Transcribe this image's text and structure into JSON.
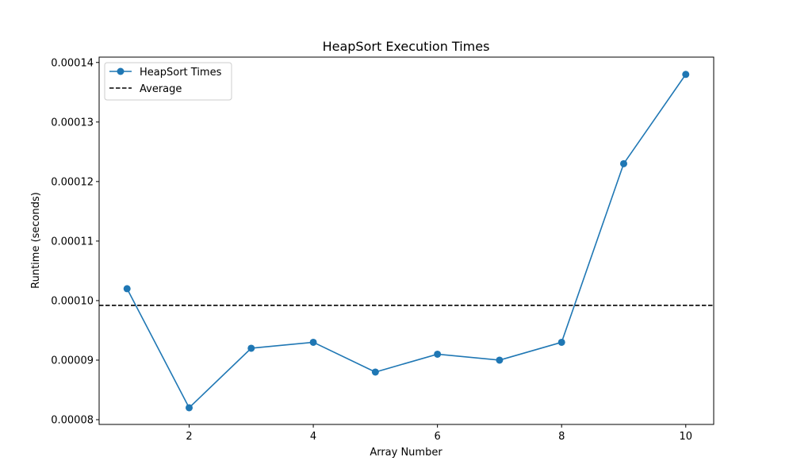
{
  "chart_data": {
    "type": "line",
    "title": "HeapSort Execution Times",
    "xlabel": "Array Number",
    "ylabel": "Runtime (seconds)",
    "xlim": [
      0.55,
      10.45
    ],
    "ylim": [
      7.92e-05,
      0.0001409
    ],
    "x_ticks": [
      2,
      4,
      6,
      8,
      10
    ],
    "x_tick_labels": [
      "2",
      "4",
      "6",
      "8",
      "10"
    ],
    "y_ticks": [
      8e-05,
      9e-05,
      0.0001,
      0.00011,
      0.00012,
      0.00013,
      0.00014
    ],
    "y_tick_labels": [
      "0.00008",
      "0.00009",
      "0.00010",
      "0.00011",
      "0.00012",
      "0.00013",
      "0.00014"
    ],
    "grid": false,
    "legend_position": "top-left",
    "series": [
      {
        "name": "HeapSort Times",
        "color": "#1f77b4",
        "marker": "circle",
        "line_style": "solid",
        "x": [
          1,
          2,
          3,
          4,
          5,
          6,
          7,
          8,
          9,
          10
        ],
        "y": [
          0.000102,
          8.2e-05,
          9.2e-05,
          9.3e-05,
          8.8e-05,
          9.1e-05,
          9e-05,
          9.3e-05,
          0.000123,
          0.000138
        ]
      }
    ],
    "reference_lines": [
      {
        "name": "Average",
        "orientation": "horizontal",
        "y": 9.92e-05,
        "color": "#000000",
        "line_style": "dashed"
      }
    ]
  }
}
